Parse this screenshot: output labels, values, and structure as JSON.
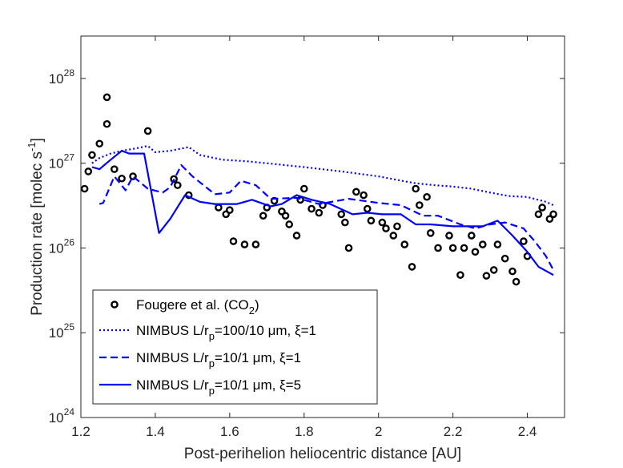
{
  "chart_data": {
    "type": "line",
    "title": "",
    "xlabel": "Post-perihelion heliocentric distance [AU]",
    "ylabel": "Production rate [molec s⁻¹]",
    "xlim": [
      1.2,
      2.5
    ],
    "ylim_log10": [
      24,
      28.5
    ],
    "yscale": "log",
    "x_ticks": [
      1.2,
      1.4,
      1.6,
      1.8,
      2.0,
      2.2,
      2.4
    ],
    "x_tick_labels": [
      "1.2",
      "1.4",
      "1.6",
      "1.8",
      "2",
      "2.2",
      "2.4"
    ],
    "y_ticks_exponent": [
      24,
      25,
      26,
      27,
      28
    ],
    "y_tick_base": "10",
    "legend_position": "bottom-left",
    "series": [
      {
        "name": "Fougere et al. (CO2)",
        "legend_label": "Fougere et al. (CO",
        "legend_sub": "2",
        "legend_suffix": ")",
        "style": "circles",
        "color": "#000000",
        "points": [
          [
            1.21,
            5e+26
          ],
          [
            1.22,
            8e+26
          ],
          [
            1.23,
            1.25e+27
          ],
          [
            1.25,
            1.7e+27
          ],
          [
            1.27,
            6e+27
          ],
          [
            1.27,
            2.9e+27
          ],
          [
            1.29,
            8.5e+26
          ],
          [
            1.31,
            6.6e+26
          ],
          [
            1.34,
            7e+26
          ],
          [
            1.38,
            2.4e+27
          ],
          [
            1.45,
            6.5e+26
          ],
          [
            1.46,
            5.5e+26
          ],
          [
            1.49,
            4.2e+26
          ],
          [
            1.57,
            3e+26
          ],
          [
            1.59,
            2.5e+26
          ],
          [
            1.6,
            2.8e+26
          ],
          [
            1.61,
            1.2e+26
          ],
          [
            1.64,
            1.1e+26
          ],
          [
            1.67,
            1.1e+26
          ],
          [
            1.69,
            2.4e+26
          ],
          [
            1.7,
            3e+26
          ],
          [
            1.72,
            3.6e+26
          ],
          [
            1.74,
            2.7e+26
          ],
          [
            1.75,
            2.4e+26
          ],
          [
            1.76,
            1.9e+26
          ],
          [
            1.78,
            1.4e+26
          ],
          [
            1.79,
            3.7e+26
          ],
          [
            1.8,
            5e+26
          ],
          [
            1.82,
            2.9e+26
          ],
          [
            1.84,
            2.6e+26
          ],
          [
            1.85,
            3.2e+26
          ],
          [
            1.9,
            2.5e+26
          ],
          [
            1.91,
            2e+26
          ],
          [
            1.92,
            1e+26
          ],
          [
            1.94,
            4.6e+26
          ],
          [
            1.96,
            4.2e+26
          ],
          [
            1.97,
            2.9e+26
          ],
          [
            1.98,
            2.1e+26
          ],
          [
            2.01,
            2e+26
          ],
          [
            2.02,
            1.7e+26
          ],
          [
            2.04,
            1.4e+26
          ],
          [
            2.05,
            1.8e+26
          ],
          [
            2.07,
            1.1e+26
          ],
          [
            2.09,
            6e+25
          ],
          [
            2.1,
            5e+26
          ],
          [
            2.11,
            3.2e+26
          ],
          [
            2.13,
            4e+26
          ],
          [
            2.14,
            1.5e+26
          ],
          [
            2.16,
            1e+26
          ],
          [
            2.19,
            1.4e+26
          ],
          [
            2.2,
            1e+26
          ],
          [
            2.22,
            4.8e+25
          ],
          [
            2.23,
            1e+26
          ],
          [
            2.25,
            1.4e+26
          ],
          [
            2.26,
            9e+25
          ],
          [
            2.28,
            1.1e+26
          ],
          [
            2.29,
            4.7e+25
          ],
          [
            2.31,
            5.5e+25
          ],
          [
            2.32,
            1.1e+26
          ],
          [
            2.34,
            7.5e+25
          ],
          [
            2.36,
            5.3e+25
          ],
          [
            2.37,
            4e+25
          ],
          [
            2.39,
            1.2e+26
          ],
          [
            2.4,
            8e+25
          ],
          [
            2.43,
            2.5e+26
          ],
          [
            2.44,
            3e+26
          ],
          [
            2.46,
            2.2e+26
          ],
          [
            2.47,
            2.5e+26
          ]
        ]
      },
      {
        "name": "NIMBUS L/rp=100/10 μm, ξ=1",
        "legend_label": "NIMBUS L/r",
        "legend_sub": "p",
        "legend_suffix": "=100/10 μm, ξ=1",
        "style": "dotted",
        "color": "#0000ff",
        "points": [
          [
            1.23,
            1e+27
          ],
          [
            1.25,
            1.15e+27
          ],
          [
            1.28,
            1.3e+27
          ],
          [
            1.31,
            1.4e+27
          ],
          [
            1.35,
            1.5e+27
          ],
          [
            1.38,
            1.6e+27
          ],
          [
            1.4,
            1.35e+27
          ],
          [
            1.44,
            1.4e+27
          ],
          [
            1.49,
            1.55e+27
          ],
          [
            1.52,
            1.25e+27
          ],
          [
            1.58,
            1.1e+27
          ],
          [
            1.65,
            1.05e+27
          ],
          [
            1.7,
            1e+27
          ],
          [
            1.8,
            9e+26
          ],
          [
            1.9,
            8e+26
          ],
          [
            2.0,
            7e+26
          ],
          [
            2.08,
            6e+26
          ],
          [
            2.1,
            5.8e+26
          ],
          [
            2.15,
            5.5e+26
          ],
          [
            2.2,
            5.3e+26
          ],
          [
            2.25,
            5e+26
          ],
          [
            2.3,
            4.5e+26
          ],
          [
            2.35,
            4.1e+26
          ],
          [
            2.4,
            4e+26
          ],
          [
            2.45,
            3.5e+26
          ],
          [
            2.47,
            3.2e+26
          ]
        ]
      },
      {
        "name": "NIMBUS L/rp=10/1 μm, ξ=1",
        "legend_label": "NIMBUS L/r",
        "legend_sub": "p",
        "legend_suffix": "=10/1 μm, ξ=1",
        "style": "dashed",
        "color": "#0000ff",
        "points": [
          [
            1.25,
            3.3e+26
          ],
          [
            1.26,
            3.4e+26
          ],
          [
            1.29,
            7e+26
          ],
          [
            1.32,
            4.8e+26
          ],
          [
            1.34,
            7e+26
          ],
          [
            1.38,
            5e+26
          ],
          [
            1.42,
            4.5e+26
          ],
          [
            1.44,
            5.2e+26
          ],
          [
            1.47,
            9.5e+26
          ],
          [
            1.5,
            7e+26
          ],
          [
            1.56,
            4.3e+26
          ],
          [
            1.6,
            4.5e+26
          ],
          [
            1.63,
            6.2e+26
          ],
          [
            1.67,
            5.5e+26
          ],
          [
            1.71,
            3.8e+26
          ],
          [
            1.78,
            3.9e+26
          ],
          [
            1.84,
            3.3e+26
          ],
          [
            1.92,
            3.8e+26
          ],
          [
            2.0,
            3.4e+26
          ],
          [
            2.06,
            3.2e+26
          ],
          [
            2.12,
            2.4e+26
          ],
          [
            2.16,
            2.4e+26
          ],
          [
            2.22,
            1.9e+26
          ],
          [
            2.26,
            1.7e+26
          ],
          [
            2.3,
            1.9e+26
          ],
          [
            2.34,
            2e+26
          ],
          [
            2.39,
            1.7e+26
          ],
          [
            2.42,
            1.2e+26
          ],
          [
            2.45,
            8e+25
          ],
          [
            2.47,
            5.5e+25
          ]
        ]
      },
      {
        "name": "NIMBUS L/rp=10/1 μm, ξ=5",
        "legend_label": "NIMBUS L/r",
        "legend_sub": "p",
        "legend_suffix": "=10/1 μm, ξ=5",
        "style": "solid",
        "color": "#0000ff",
        "points": [
          [
            1.23,
            9e+26
          ],
          [
            1.25,
            8.5e+26
          ],
          [
            1.28,
            1.1e+27
          ],
          [
            1.31,
            1.4e+27
          ],
          [
            1.33,
            1.3e+27
          ],
          [
            1.37,
            1.3e+27
          ],
          [
            1.41,
            1.5e+26
          ],
          [
            1.44,
            2.2e+26
          ],
          [
            1.48,
            4.2e+26
          ],
          [
            1.52,
            3.5e+26
          ],
          [
            1.56,
            3.3e+26
          ],
          [
            1.62,
            3.3e+26
          ],
          [
            1.66,
            3.7e+26
          ],
          [
            1.71,
            3.1e+26
          ],
          [
            1.74,
            3.3e+26
          ],
          [
            1.78,
            4.2e+26
          ],
          [
            1.82,
            3.7e+26
          ],
          [
            1.87,
            3.3e+26
          ],
          [
            1.93,
            2.5e+26
          ],
          [
            1.97,
            2.6e+26
          ],
          [
            2.01,
            2.5e+26
          ],
          [
            2.06,
            2.5e+26
          ],
          [
            2.1,
            1.9e+26
          ],
          [
            2.14,
            1.9e+26
          ],
          [
            2.2,
            1.8e+26
          ],
          [
            2.24,
            1.8e+26
          ],
          [
            2.28,
            1.8e+26
          ],
          [
            2.32,
            2.1e+26
          ],
          [
            2.36,
            1.4e+26
          ],
          [
            2.4,
            9e+25
          ],
          [
            2.43,
            6e+25
          ],
          [
            2.47,
            4.8e+25
          ]
        ]
      }
    ]
  }
}
